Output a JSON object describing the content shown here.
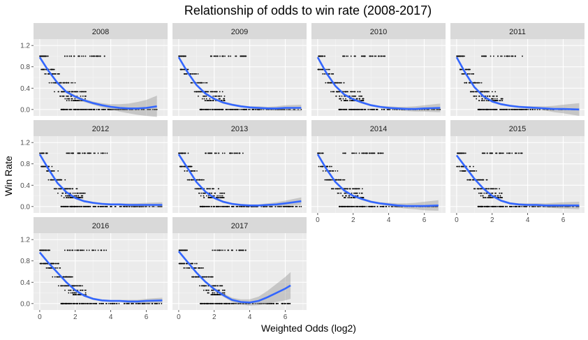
{
  "chart_data": {
    "type": "scatter",
    "title": "Relationship of odds to win rate (2008-2017)",
    "xlabel": "Weighted Odds (log2)",
    "ylabel": "Win Rate",
    "xlim": [
      -0.35,
      7.2
    ],
    "ylim": [
      -0.12,
      1.32
    ],
    "x_ticks": [
      0,
      2,
      4,
      6
    ],
    "y_ticks": [
      0.0,
      0.4,
      0.8,
      1.2
    ],
    "x_tick_labels": [
      "0",
      "2",
      "4",
      "6"
    ],
    "y_tick_labels": [
      "0.0",
      "0.4",
      "0.8",
      "1.2"
    ],
    "grid": true,
    "smooth_color": "#3366ff",
    "point_color": "#000000",
    "panel_bg": "#ebebeb",
    "strip_bg": "#d9d9d9",
    "facets": [
      {
        "label": "2008",
        "xmax": 6.6,
        "curve": [
          [
            0,
            0.98
          ],
          [
            0.5,
            0.72
          ],
          [
            1,
            0.5
          ],
          [
            1.5,
            0.33
          ],
          [
            2,
            0.24
          ],
          [
            2.5,
            0.17
          ],
          [
            3,
            0.12
          ],
          [
            3.5,
            0.08
          ],
          [
            4,
            0.05
          ],
          [
            4.5,
            0.03
          ],
          [
            5,
            0.02
          ],
          [
            5.5,
            0.02
          ],
          [
            6,
            0.03
          ],
          [
            6.6,
            0.06
          ]
        ],
        "band": [
          0.02,
          0.02,
          0.02,
          0.02,
          0.03,
          0.03,
          0.03,
          0.04,
          0.05,
          0.07,
          0.09,
          0.12,
          0.15,
          0.2
        ]
      },
      {
        "label": "2009",
        "xmax": 6.9,
        "curve": [
          [
            0,
            0.98
          ],
          [
            0.5,
            0.7
          ],
          [
            1,
            0.46
          ],
          [
            1.5,
            0.3
          ],
          [
            2,
            0.2
          ],
          [
            2.5,
            0.13
          ],
          [
            3,
            0.09
          ],
          [
            3.5,
            0.06
          ],
          [
            4,
            0.04
          ],
          [
            4.5,
            0.03
          ],
          [
            5,
            0.02
          ],
          [
            5.5,
            0.02
          ],
          [
            6,
            0.03
          ],
          [
            6.9,
            0.03
          ]
        ],
        "band": [
          0.02,
          0.02,
          0.02,
          0.02,
          0.02,
          0.02,
          0.02,
          0.02,
          0.02,
          0.03,
          0.03,
          0.04,
          0.05,
          0.06
        ]
      },
      {
        "label": "2010",
        "xmax": 6.9,
        "curve": [
          [
            0,
            0.98
          ],
          [
            0.5,
            0.68
          ],
          [
            1,
            0.44
          ],
          [
            1.5,
            0.28
          ],
          [
            2,
            0.19
          ],
          [
            2.5,
            0.13
          ],
          [
            3,
            0.08
          ],
          [
            3.5,
            0.05
          ],
          [
            4,
            0.03
          ],
          [
            4.5,
            0.02
          ],
          [
            5,
            0.01
          ],
          [
            5.5,
            0.01
          ],
          [
            6,
            0.02
          ],
          [
            6.9,
            0.03
          ]
        ],
        "band": [
          0.02,
          0.02,
          0.02,
          0.02,
          0.02,
          0.02,
          0.02,
          0.02,
          0.03,
          0.03,
          0.04,
          0.05,
          0.06,
          0.08
        ]
      },
      {
        "label": "2011",
        "xmax": 6.9,
        "curve": [
          [
            0,
            0.98
          ],
          [
            0.5,
            0.68
          ],
          [
            1,
            0.42
          ],
          [
            1.5,
            0.25
          ],
          [
            2,
            0.15
          ],
          [
            2.5,
            0.1
          ],
          [
            3,
            0.07
          ],
          [
            3.5,
            0.05
          ],
          [
            4,
            0.04
          ],
          [
            4.5,
            0.03
          ],
          [
            5,
            0.02
          ],
          [
            5.5,
            0.01
          ],
          [
            6,
            0.01
          ],
          [
            6.9,
            0.0
          ]
        ],
        "band": [
          0.02,
          0.02,
          0.02,
          0.02,
          0.02,
          0.02,
          0.02,
          0.02,
          0.02,
          0.03,
          0.04,
          0.06,
          0.08,
          0.12
        ]
      },
      {
        "label": "2012",
        "xmax": 6.9,
        "curve": [
          [
            0,
            0.98
          ],
          [
            0.5,
            0.7
          ],
          [
            1,
            0.44
          ],
          [
            1.5,
            0.27
          ],
          [
            2,
            0.16
          ],
          [
            2.5,
            0.1
          ],
          [
            3,
            0.07
          ],
          [
            3.5,
            0.05
          ],
          [
            4,
            0.04
          ],
          [
            4.5,
            0.04
          ],
          [
            5,
            0.03
          ],
          [
            5.5,
            0.03
          ],
          [
            6,
            0.03
          ],
          [
            6.9,
            0.03
          ]
        ],
        "band": [
          0.02,
          0.02,
          0.02,
          0.02,
          0.02,
          0.02,
          0.02,
          0.02,
          0.02,
          0.02,
          0.03,
          0.03,
          0.04,
          0.05
        ]
      },
      {
        "label": "2013",
        "xmax": 6.9,
        "curve": [
          [
            0,
            0.98
          ],
          [
            0.5,
            0.72
          ],
          [
            1,
            0.46
          ],
          [
            1.5,
            0.28
          ],
          [
            2,
            0.16
          ],
          [
            2.5,
            0.09
          ],
          [
            3,
            0.05
          ],
          [
            3.5,
            0.03
          ],
          [
            4,
            0.02
          ],
          [
            4.5,
            0.02
          ],
          [
            5,
            0.03
          ],
          [
            5.5,
            0.04
          ],
          [
            6,
            0.06
          ],
          [
            6.9,
            0.1
          ]
        ],
        "band": [
          0.02,
          0.02,
          0.02,
          0.02,
          0.02,
          0.02,
          0.02,
          0.02,
          0.02,
          0.02,
          0.03,
          0.04,
          0.05,
          0.07
        ]
      },
      {
        "label": "2014",
        "xmax": 6.8,
        "curve": [
          [
            0,
            0.98
          ],
          [
            0.5,
            0.7
          ],
          [
            1,
            0.46
          ],
          [
            1.5,
            0.3
          ],
          [
            2,
            0.2
          ],
          [
            2.5,
            0.14
          ],
          [
            3,
            0.09
          ],
          [
            3.5,
            0.06
          ],
          [
            4,
            0.04
          ],
          [
            4.5,
            0.02
          ],
          [
            5,
            0.01
          ],
          [
            5.5,
            0.01
          ],
          [
            6,
            0.01
          ],
          [
            6.8,
            0.02
          ]
        ],
        "band": [
          0.02,
          0.02,
          0.02,
          0.02,
          0.02,
          0.02,
          0.02,
          0.02,
          0.03,
          0.04,
          0.05,
          0.06,
          0.08,
          0.1
        ]
      },
      {
        "label": "2015",
        "xmax": 6.9,
        "curve": [
          [
            0,
            0.96
          ],
          [
            0.5,
            0.74
          ],
          [
            1,
            0.52
          ],
          [
            1.5,
            0.34
          ],
          [
            2,
            0.2
          ],
          [
            2.5,
            0.11
          ],
          [
            3,
            0.06
          ],
          [
            3.5,
            0.04
          ],
          [
            4,
            0.03
          ],
          [
            4.5,
            0.03
          ],
          [
            5,
            0.02
          ],
          [
            5.5,
            0.02
          ],
          [
            6,
            0.02
          ],
          [
            6.9,
            0.02
          ]
        ],
        "band": [
          0.02,
          0.02,
          0.02,
          0.02,
          0.02,
          0.02,
          0.02,
          0.02,
          0.03,
          0.03,
          0.04,
          0.05,
          0.06,
          0.07
        ]
      },
      {
        "label": "2016",
        "xmax": 6.9,
        "curve": [
          [
            0,
            0.96
          ],
          [
            0.5,
            0.76
          ],
          [
            1,
            0.58
          ],
          [
            1.5,
            0.4
          ],
          [
            2,
            0.25
          ],
          [
            2.5,
            0.15
          ],
          [
            3,
            0.09
          ],
          [
            3.5,
            0.06
          ],
          [
            4,
            0.05
          ],
          [
            4.5,
            0.05
          ],
          [
            5,
            0.04
          ],
          [
            5.5,
            0.04
          ],
          [
            6,
            0.05
          ],
          [
            6.9,
            0.06
          ]
        ],
        "band": [
          0.02,
          0.02,
          0.02,
          0.02,
          0.02,
          0.02,
          0.02,
          0.02,
          0.02,
          0.02,
          0.03,
          0.03,
          0.04,
          0.05
        ]
      },
      {
        "label": "2017",
        "xmax": 6.3,
        "curve": [
          [
            0,
            0.98
          ],
          [
            0.5,
            0.78
          ],
          [
            1,
            0.58
          ],
          [
            1.5,
            0.41
          ],
          [
            2,
            0.27
          ],
          [
            2.5,
            0.16
          ],
          [
            3,
            0.07
          ],
          [
            3.5,
            0.03
          ],
          [
            4,
            0.02
          ],
          [
            4.5,
            0.05
          ],
          [
            5,
            0.12
          ],
          [
            5.5,
            0.2
          ],
          [
            6,
            0.28
          ],
          [
            6.3,
            0.34
          ]
        ],
        "band": [
          0.02,
          0.02,
          0.02,
          0.02,
          0.03,
          0.03,
          0.04,
          0.05,
          0.06,
          0.08,
          0.12,
          0.17,
          0.22,
          0.25
        ]
      }
    ]
  }
}
